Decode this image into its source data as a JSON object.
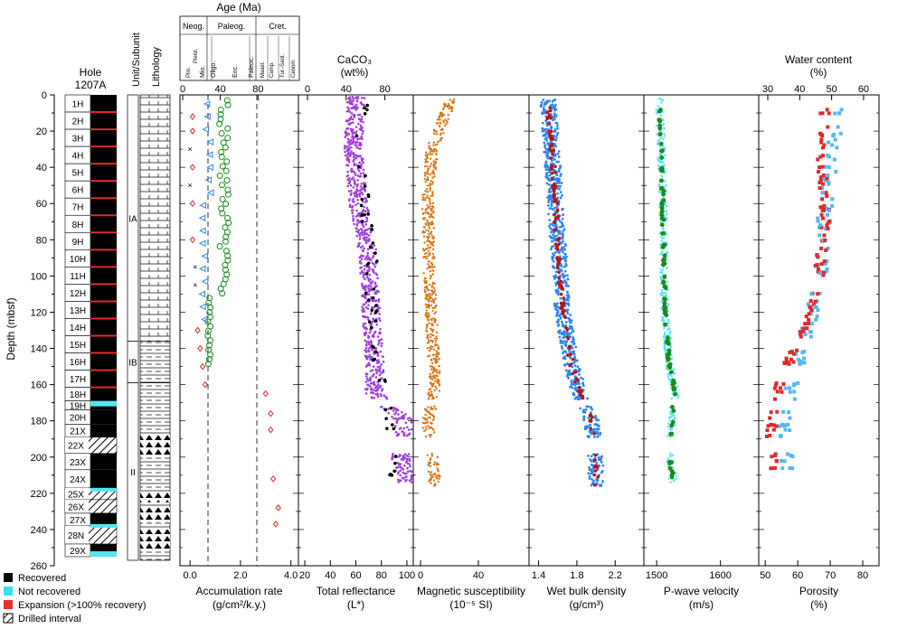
{
  "hole": {
    "title_line1": "Hole",
    "title_line2": "1207A"
  },
  "depth_axis": {
    "label": "Depth (mbsf)",
    "min": 0,
    "max": 260,
    "ticks": [
      0,
      20,
      40,
      60,
      80,
      100,
      120,
      140,
      160,
      180,
      200,
      220,
      240,
      260
    ]
  },
  "cores": [
    {
      "name": "1H",
      "top": 0,
      "bottom": 9.5,
      "status": "recovered"
    },
    {
      "name": "2H",
      "top": 9.5,
      "bottom": 19,
      "status": "recovered"
    },
    {
      "name": "3H",
      "top": 19,
      "bottom": 28.5,
      "status": "recovered"
    },
    {
      "name": "4H",
      "top": 28.5,
      "bottom": 38,
      "status": "recovered"
    },
    {
      "name": "5H",
      "top": 38,
      "bottom": 47.5,
      "status": "recovered"
    },
    {
      "name": "6H",
      "top": 47.5,
      "bottom": 57,
      "status": "recovered"
    },
    {
      "name": "7H",
      "top": 57,
      "bottom": 66.5,
      "status": "recovered"
    },
    {
      "name": "8H",
      "top": 66.5,
      "bottom": 76,
      "status": "recovered"
    },
    {
      "name": "9H",
      "top": 76,
      "bottom": 85.5,
      "status": "recovered"
    },
    {
      "name": "10H",
      "top": 85.5,
      "bottom": 95,
      "status": "recovered"
    },
    {
      "name": "11H",
      "top": 95,
      "bottom": 104.5,
      "status": "recovered"
    },
    {
      "name": "12H",
      "top": 104.5,
      "bottom": 114,
      "status": "recovered"
    },
    {
      "name": "13H",
      "top": 114,
      "bottom": 123.5,
      "status": "recovered"
    },
    {
      "name": "14H",
      "top": 123.5,
      "bottom": 133,
      "status": "recovered"
    },
    {
      "name": "15H",
      "top": 133,
      "bottom": 142.5,
      "status": "recovered"
    },
    {
      "name": "16H",
      "top": 142.5,
      "bottom": 152,
      "status": "recovered"
    },
    {
      "name": "17H",
      "top": 152,
      "bottom": 161.5,
      "status": "recovered"
    },
    {
      "name": "18H",
      "top": 161.5,
      "bottom": 169,
      "status": "recovered"
    },
    {
      "name": "19H",
      "top": 169,
      "bottom": 174,
      "status": "recovered"
    },
    {
      "name": "20H",
      "top": 174,
      "bottom": 182,
      "status": "recovered"
    },
    {
      "name": "21X",
      "top": 182,
      "bottom": 189,
      "status": "recovered"
    },
    {
      "name": "22X",
      "top": 189,
      "bottom": 198,
      "status": "drilled"
    },
    {
      "name": "23X",
      "top": 198,
      "bottom": 207,
      "status": "recovered"
    },
    {
      "name": "24X",
      "top": 207,
      "bottom": 217,
      "status": "recovered"
    },
    {
      "name": "25X",
      "top": 217,
      "bottom": 223.5,
      "status": "drilled"
    },
    {
      "name": "26X",
      "top": 223.5,
      "bottom": 231,
      "status": "drilled"
    },
    {
      "name": "27X",
      "top": 231,
      "bottom": 238,
      "status": "recovered"
    },
    {
      "name": "28N",
      "top": 238,
      "bottom": 248,
      "status": "drilled"
    },
    {
      "name": "29X",
      "top": 248,
      "bottom": 255,
      "status": "recovered"
    }
  ],
  "not_recovered_bands": [
    [
      169,
      172
    ],
    [
      217,
      219
    ],
    [
      237,
      239
    ],
    [
      252,
      255
    ]
  ],
  "expansion_lines": [
    9.5,
    19,
    28.5,
    38,
    47.5,
    57,
    66.5,
    76,
    85.5,
    95,
    104.5,
    114,
    123.5,
    133,
    142.5,
    152,
    161.5
  ],
  "units": {
    "header": "Unit/Subunit",
    "lithology_header": "Lithology",
    "items": [
      {
        "label": "IA",
        "top": 0,
        "bottom": 136
      },
      {
        "label": "IB",
        "top": 136,
        "bottom": 159
      },
      {
        "label": "II",
        "top": 159,
        "bottom": 257
      }
    ]
  },
  "legend": [
    {
      "label": "Recovered",
      "color": "#000000"
    },
    {
      "label": "Not recovered",
      "color": "#33e6f0"
    },
    {
      "label": "Expansion (>100% recovery)",
      "color": "#e8302a"
    },
    {
      "label": "Drilled interval",
      "color": "hatch"
    }
  ],
  "age": {
    "title": "Age (Ma)",
    "eras": [
      "Neog.",
      "Paleog.",
      "Cret."
    ],
    "sub_neog": [
      "Plio.",
      "Pleist.",
      "Mio."
    ],
    "sub_paleog": [
      "Oligo.",
      "Eoc.",
      "Paleoc."
    ],
    "sub_cret": [
      "Maast.",
      "Camp.",
      "Tur.-Sant.",
      "Cenom."
    ],
    "axis_ticks": [
      "0",
      "40",
      "80"
    ]
  },
  "panels": [
    {
      "id": "accumulation",
      "xlabel": "Accumulation rate",
      "unit": "(g/cm²/k.y.)",
      "min": -0.4,
      "max": 4.3,
      "ticks": [
        "0.0",
        "2.0",
        "4.0"
      ]
    },
    {
      "id": "reflectance",
      "xlabel": "Total reflectance",
      "unit": "(L*)",
      "min": 15,
      "max": 105,
      "ticks": [
        "20",
        "40",
        "60",
        "80",
        "100"
      ],
      "top_title": "CaCO₃",
      "top_unit": "(wt%)",
      "top_ticks": [
        "0",
        "40",
        "80"
      ]
    },
    {
      "id": "magsus",
      "xlabel": "Magnetic susceptibility",
      "unit": "(10⁻⁵ SI)",
      "min": -5,
      "max": 75,
      "ticks": [
        "0",
        "40"
      ]
    },
    {
      "id": "density",
      "xlabel": "Wet bulk density",
      "unit": "(g/cm³)",
      "min": 1.3,
      "max": 2.5,
      "ticks": [
        "1.4",
        "1.8",
        "2.2"
      ]
    },
    {
      "id": "pwave",
      "xlabel": "P-wave velocity",
      "unit": "(m/s)",
      "min": 1480,
      "max": 1660,
      "ticks": [
        "1500",
        "1600"
      ]
    },
    {
      "id": "porosity",
      "xlabel": "Porosity",
      "unit": "(%)",
      "min": 48,
      "max": 85,
      "ticks": [
        "50",
        "60",
        "70",
        "80"
      ],
      "top_title": "Water content",
      "top_unit": "(%)",
      "top_ticks": [
        "30",
        "40",
        "50",
        "60"
      ]
    }
  ],
  "colors": {
    "purple": "#a040d8",
    "orange": "#d8771a",
    "blue": "#2f86f0",
    "dark_red": "#b01818",
    "cyan": "#54e6f0",
    "green": "#1c8a1c",
    "red": "#e02a2a",
    "light_blue": "#55b8f0",
    "tri_blue": "#2f86f0",
    "circle_green": "#1c8a1c"
  },
  "chart_data": {
    "type": "scatter",
    "y_axis": "Depth (mbsf)",
    "ylim": [
      0,
      260
    ],
    "series": [
      {
        "name": "Accumulation rate",
        "x_unit": "g/cm²/k.y.",
        "points": [
          [
            0.1,
            12
          ],
          [
            0.1,
            20
          ],
          [
            0.0,
            30
          ],
          [
            0.1,
            40
          ],
          [
            0.0,
            50
          ],
          [
            0.1,
            60
          ],
          [
            0.1,
            80
          ],
          [
            0.2,
            95
          ],
          [
            0.2,
            105
          ],
          [
            0.3,
            130
          ],
          [
            0.4,
            140
          ],
          [
            0.5,
            150
          ],
          [
            0.6,
            160
          ],
          [
            3.0,
            165
          ],
          [
            3.2,
            176
          ],
          [
            3.2,
            185
          ],
          [
            3.3,
            212
          ],
          [
            3.5,
            228
          ],
          [
            3.4,
            237
          ]
        ]
      },
      {
        "name": "CaCO3",
        "x_unit": "wt%",
        "points": [
          [
            60,
            10
          ],
          [
            55,
            22
          ],
          [
            45,
            35
          ],
          [
            60,
            50
          ],
          [
            58,
            65
          ],
          [
            70,
            85
          ],
          [
            65,
            100
          ],
          [
            64,
            110
          ],
          [
            68,
            125
          ],
          [
            72,
            140
          ],
          [
            70,
            150
          ],
          [
            77,
            162
          ],
          [
            82,
            170
          ],
          [
            85,
            185
          ],
          [
            87,
            195
          ],
          [
            86,
            210
          ]
        ]
      },
      {
        "name": "Total reflectance",
        "x_unit": "L*",
        "points": [
          [
            60,
            5
          ],
          [
            58,
            30
          ],
          [
            62,
            60
          ],
          [
            70,
            90
          ],
          [
            72,
            120
          ],
          [
            75,
            150
          ],
          [
            74,
            165
          ],
          [
            98,
            180
          ],
          [
            95,
            200
          ],
          [
            100,
            212
          ]
        ]
      },
      {
        "name": "Magnetic susceptibility",
        "x_unit": "10^-5 SI",
        "points": [
          [
            20,
            5
          ],
          [
            8,
            30
          ],
          [
            5,
            60
          ],
          [
            6,
            100
          ],
          [
            8,
            130
          ],
          [
            10,
            160
          ],
          [
            5,
            180
          ],
          [
            8,
            200
          ],
          [
            10,
            212
          ]
        ]
      },
      {
        "name": "Wet bulk density",
        "x_unit": "g/cm³",
        "points": [
          [
            1.5,
            5
          ],
          [
            1.55,
            40
          ],
          [
            1.6,
            80
          ],
          [
            1.65,
            120
          ],
          [
            1.75,
            150
          ],
          [
            1.8,
            160
          ],
          [
            1.95,
            180
          ],
          [
            2.0,
            200
          ],
          [
            2.0,
            212
          ]
        ]
      },
      {
        "name": "P-wave velocity",
        "x_unit": "m/s",
        "points": [
          [
            1505,
            10
          ],
          [
            1510,
            60
          ],
          [
            1513,
            120
          ],
          [
            1520,
            150
          ],
          [
            1530,
            165
          ],
          [
            1525,
            175
          ],
          [
            1520,
            200
          ],
          [
            1525,
            210
          ]
        ]
      },
      {
        "name": "Porosity",
        "x_unit": "%",
        "points": [
          [
            72,
            10
          ],
          [
            70,
            40
          ],
          [
            68,
            70
          ],
          [
            67,
            100
          ],
          [
            63,
            130
          ],
          [
            60,
            150
          ],
          [
            57,
            170
          ],
          [
            56,
            190
          ],
          [
            57,
            210
          ]
        ]
      },
      {
        "name": "Water content",
        "x_unit": "%",
        "points": [
          [
            48,
            10
          ],
          [
            47,
            40
          ],
          [
            48,
            70
          ],
          [
            46,
            100
          ],
          [
            41,
            130
          ],
          [
            36,
            150
          ],
          [
            32,
            170
          ],
          [
            31,
            190
          ],
          [
            32,
            210
          ]
        ]
      }
    ]
  }
}
